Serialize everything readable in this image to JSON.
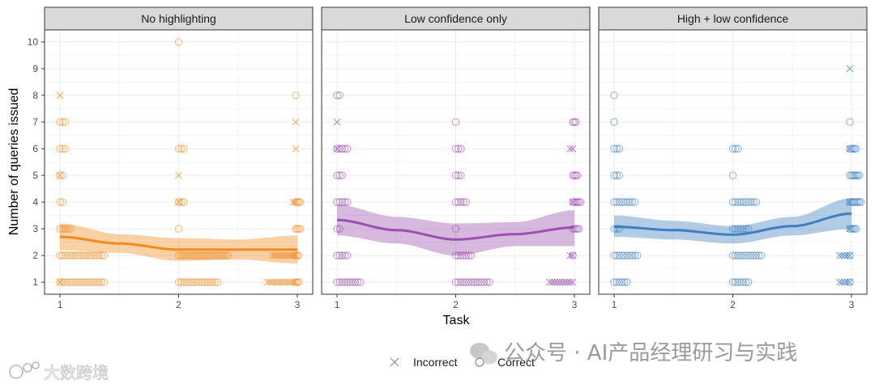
{
  "chart_data": {
    "type": "scatter",
    "xlabel": "Task",
    "ylabel": "Number of queries issued",
    "x_ticks": [
      "1",
      "2",
      "3"
    ],
    "y_ticks": [
      "1",
      "2",
      "3",
      "4",
      "5",
      "6",
      "7",
      "8",
      "9",
      "10"
    ],
    "xlim": [
      0.87,
      3.13
    ],
    "ylim": [
      0.55,
      10.45
    ],
    "legend": {
      "position": "bottom",
      "entries": [
        {
          "label": "Incorrect",
          "shape": "cross"
        },
        {
          "label": "Correct",
          "shape": "circle"
        }
      ]
    },
    "panels": [
      {
        "title": "No highlighting",
        "color": "#F28A1E",
        "trend": [
          {
            "x": 1.0,
            "y": 2.7,
            "lo": 2.2,
            "hi": 3.2
          },
          {
            "x": 1.5,
            "y": 2.45,
            "lo": 2.1,
            "hi": 2.8
          },
          {
            "x": 2.0,
            "y": 2.22,
            "lo": 1.8,
            "hi": 2.65
          },
          {
            "x": 2.5,
            "y": 2.22,
            "lo": 1.85,
            "hi": 2.6
          },
          {
            "x": 3.0,
            "y": 2.22,
            "lo": 1.7,
            "hi": 2.75
          }
        ],
        "points": [
          {
            "task": 1,
            "v": 1,
            "n": 18,
            "s": "o"
          },
          {
            "task": 1,
            "v": 1,
            "n": 1,
            "s": "x"
          },
          {
            "task": 1,
            "v": 2,
            "n": 18,
            "s": "o"
          },
          {
            "task": 1,
            "v": 3,
            "n": 5,
            "s": "o"
          },
          {
            "task": 1,
            "v": 4,
            "n": 2,
            "s": "o"
          },
          {
            "task": 1,
            "v": 5,
            "n": 2,
            "s": "o"
          },
          {
            "task": 1,
            "v": 5,
            "n": 1,
            "s": "x"
          },
          {
            "task": 1,
            "v": 6,
            "n": 3,
            "s": "o"
          },
          {
            "task": 1,
            "v": 7,
            "n": 3,
            "s": "o"
          },
          {
            "task": 1,
            "v": 8,
            "n": 1,
            "s": "x"
          },
          {
            "task": 2,
            "v": 1,
            "n": 16,
            "s": "o"
          },
          {
            "task": 2,
            "v": 2,
            "n": 20,
            "s": "o"
          },
          {
            "task": 2,
            "v": 3,
            "n": 1,
            "s": "o"
          },
          {
            "task": 2,
            "v": 4,
            "n": 3,
            "s": "o"
          },
          {
            "task": 2,
            "v": 4,
            "n": 1,
            "s": "x"
          },
          {
            "task": 2,
            "v": 5,
            "n": 1,
            "s": "x"
          },
          {
            "task": 2,
            "v": 6,
            "n": 3,
            "s": "o"
          },
          {
            "task": 2,
            "v": 10,
            "n": 1,
            "s": "o"
          },
          {
            "task": 3,
            "v": 1,
            "n": 12,
            "s": "x"
          },
          {
            "task": 3,
            "v": 1,
            "n": 3,
            "s": "o"
          },
          {
            "task": 3,
            "v": 2,
            "n": 10,
            "s": "x"
          },
          {
            "task": 3,
            "v": 2,
            "n": 3,
            "s": "o"
          },
          {
            "task": 3,
            "v": 3,
            "n": 4,
            "s": "o"
          },
          {
            "task": 3,
            "v": 4,
            "n": 2,
            "s": "x"
          },
          {
            "task": 3,
            "v": 4,
            "n": 4,
            "s": "o"
          },
          {
            "task": 3,
            "v": 6,
            "n": 1,
            "s": "x"
          },
          {
            "task": 3,
            "v": 7,
            "n": 1,
            "s": "x"
          },
          {
            "task": 3,
            "v": 8,
            "n": 1,
            "s": "o"
          }
        ]
      },
      {
        "title": "Low confidence only",
        "color": "#9B4FAE",
        "trend": [
          {
            "x": 1.0,
            "y": 3.33,
            "lo": 2.75,
            "hi": 3.9
          },
          {
            "x": 1.5,
            "y": 2.95,
            "lo": 2.45,
            "hi": 3.45
          },
          {
            "x": 2.0,
            "y": 2.6,
            "lo": 2.0,
            "hi": 3.2
          },
          {
            "x": 2.5,
            "y": 2.8,
            "lo": 2.35,
            "hi": 3.25
          },
          {
            "x": 3.0,
            "y": 3.05,
            "lo": 2.35,
            "hi": 3.7
          }
        ],
        "points": [
          {
            "task": 1,
            "v": 1,
            "n": 10,
            "s": "o"
          },
          {
            "task": 1,
            "v": 2,
            "n": 5,
            "s": "o"
          },
          {
            "task": 1,
            "v": 3,
            "n": 2,
            "s": "o"
          },
          {
            "task": 1,
            "v": 4,
            "n": 5,
            "s": "o"
          },
          {
            "task": 1,
            "v": 5,
            "n": 3,
            "s": "o"
          },
          {
            "task": 1,
            "v": 6,
            "n": 5,
            "s": "o"
          },
          {
            "task": 1,
            "v": 6,
            "n": 1,
            "s": "x"
          },
          {
            "task": 1,
            "v": 7,
            "n": 1,
            "s": "x"
          },
          {
            "task": 1,
            "v": 8,
            "n": 2,
            "s": "o"
          },
          {
            "task": 2,
            "v": 1,
            "n": 14,
            "s": "o"
          },
          {
            "task": 2,
            "v": 2,
            "n": 7,
            "s": "o"
          },
          {
            "task": 2,
            "v": 3,
            "n": 1,
            "s": "o"
          },
          {
            "task": 2,
            "v": 4,
            "n": 5,
            "s": "o"
          },
          {
            "task": 2,
            "v": 5,
            "n": 3,
            "s": "o"
          },
          {
            "task": 2,
            "v": 6,
            "n": 3,
            "s": "o"
          },
          {
            "task": 2,
            "v": 7,
            "n": 1,
            "s": "o"
          },
          {
            "task": 3,
            "v": 1,
            "n": 10,
            "s": "x"
          },
          {
            "task": 3,
            "v": 2,
            "n": 2,
            "s": "x"
          },
          {
            "task": 3,
            "v": 2,
            "n": 1,
            "s": "o"
          },
          {
            "task": 3,
            "v": 3,
            "n": 5,
            "s": "o"
          },
          {
            "task": 3,
            "v": 4,
            "n": 1,
            "s": "x"
          },
          {
            "task": 3,
            "v": 4,
            "n": 6,
            "s": "o"
          },
          {
            "task": 3,
            "v": 5,
            "n": 4,
            "s": "o"
          },
          {
            "task": 3,
            "v": 6,
            "n": 2,
            "s": "x"
          },
          {
            "task": 3,
            "v": 7,
            "n": 3,
            "s": "o"
          }
        ]
      },
      {
        "title": "High + low confidence",
        "color": "#3F7FBF",
        "trend": [
          {
            "x": 1.0,
            "y": 3.08,
            "lo": 2.7,
            "hi": 3.5
          },
          {
            "x": 1.5,
            "y": 2.95,
            "lo": 2.6,
            "hi": 3.3
          },
          {
            "x": 2.0,
            "y": 2.78,
            "lo": 2.45,
            "hi": 3.1
          },
          {
            "x": 2.5,
            "y": 3.1,
            "lo": 2.75,
            "hi": 3.45
          },
          {
            "x": 3.0,
            "y": 3.57,
            "lo": 3.0,
            "hi": 4.15
          }
        ],
        "points": [
          {
            "task": 1,
            "v": 1,
            "n": 6,
            "s": "o"
          },
          {
            "task": 1,
            "v": 2,
            "n": 10,
            "s": "o"
          },
          {
            "task": 1,
            "v": 3,
            "n": 3,
            "s": "o"
          },
          {
            "task": 1,
            "v": 4,
            "n": 9,
            "s": "o"
          },
          {
            "task": 1,
            "v": 5,
            "n": 3,
            "s": "o"
          },
          {
            "task": 1,
            "v": 6,
            "n": 3,
            "s": "o"
          },
          {
            "task": 1,
            "v": 7,
            "n": 1,
            "s": "o"
          },
          {
            "task": 1,
            "v": 8,
            "n": 1,
            "s": "o"
          },
          {
            "task": 2,
            "v": 1,
            "n": 7,
            "s": "o"
          },
          {
            "task": 2,
            "v": 2,
            "n": 12,
            "s": "o"
          },
          {
            "task": 2,
            "v": 3,
            "n": 7,
            "s": "o"
          },
          {
            "task": 2,
            "v": 4,
            "n": 10,
            "s": "o"
          },
          {
            "task": 2,
            "v": 5,
            "n": 1,
            "s": "o"
          },
          {
            "task": 2,
            "v": 6,
            "n": 3,
            "s": "o"
          },
          {
            "task": 3,
            "v": 1,
            "n": 5,
            "s": "x"
          },
          {
            "task": 3,
            "v": 1,
            "n": 1,
            "s": "o"
          },
          {
            "task": 3,
            "v": 2,
            "n": 5,
            "s": "x"
          },
          {
            "task": 3,
            "v": 2,
            "n": 1,
            "s": "o"
          },
          {
            "task": 3,
            "v": 3,
            "n": 1,
            "s": "x"
          },
          {
            "task": 3,
            "v": 3,
            "n": 5,
            "s": "o"
          },
          {
            "task": 3,
            "v": 4,
            "n": 1,
            "s": "x"
          },
          {
            "task": 3,
            "v": 4,
            "n": 8,
            "s": "o"
          },
          {
            "task": 3,
            "v": 5,
            "n": 7,
            "s": "o"
          },
          {
            "task": 3,
            "v": 6,
            "n": 1,
            "s": "x"
          },
          {
            "task": 3,
            "v": 6,
            "n": 5,
            "s": "o"
          },
          {
            "task": 3,
            "v": 7,
            "n": 1,
            "s": "o"
          },
          {
            "task": 3,
            "v": 9,
            "n": 1,
            "s": "x"
          }
        ]
      }
    ]
  },
  "watermark": {
    "right": "公众号 · AI产品经理研习与实践",
    "left": "大数跨境"
  }
}
